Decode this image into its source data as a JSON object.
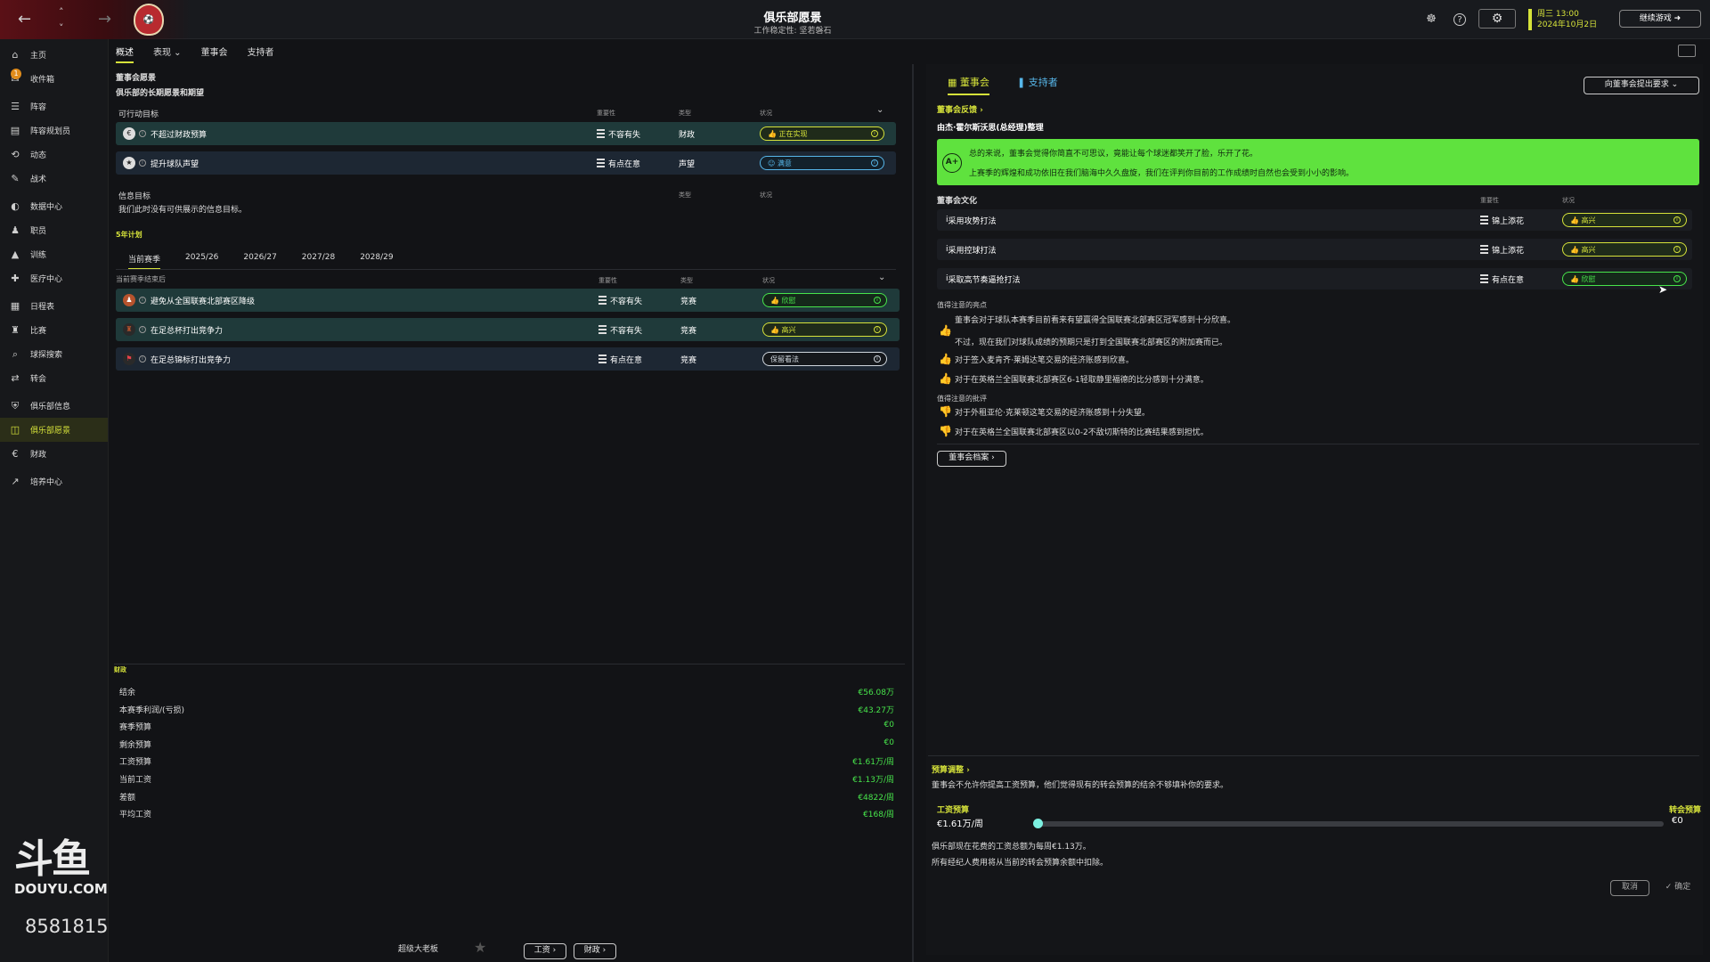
{
  "topbar": {
    "title": "俱乐部愿景",
    "subtitle": "工作稳定性: 坚若磐石",
    "time": "周三 13:00",
    "date": "2024年10月2日",
    "continue": "继续游戏"
  },
  "sidebar": {
    "items": [
      {
        "label": "主页",
        "icon": "home-icon"
      },
      {
        "label": "收件箱",
        "icon": "inbox-icon",
        "badge": "1"
      },
      {
        "label": "阵容",
        "icon": "squad-icon"
      },
      {
        "label": "阵容规划员",
        "icon": "planner-icon"
      },
      {
        "label": "动态",
        "icon": "dynamics-icon"
      },
      {
        "label": "战术",
        "icon": "tactics-icon"
      },
      {
        "label": "数据中心",
        "icon": "data-icon"
      },
      {
        "label": "职员",
        "icon": "staff-icon"
      },
      {
        "label": "训练",
        "icon": "training-icon"
      },
      {
        "label": "医疗中心",
        "icon": "medical-icon"
      },
      {
        "label": "日程表",
        "icon": "calendar-icon"
      },
      {
        "label": "比赛",
        "icon": "trophy-icon"
      },
      {
        "label": "球探搜索",
        "icon": "scouting-icon"
      },
      {
        "label": "转会",
        "icon": "transfer-icon"
      },
      {
        "label": "俱乐部信息",
        "icon": "club-info-icon"
      },
      {
        "label": "俱乐部愿景",
        "icon": "club-vision-icon"
      },
      {
        "label": "财政",
        "icon": "finance-icon"
      },
      {
        "label": "培养中心",
        "icon": "development-icon"
      }
    ]
  },
  "watermark": {
    "logo": "斗鱼",
    "text": "DOUYU.COM",
    "room": "8581815"
  },
  "subnav": {
    "tabs": [
      "概述",
      "表现 ⌄",
      "董事会",
      "支持者"
    ]
  },
  "left": {
    "section_title": "董事会愿景",
    "section_sub": "俱乐部的长期愿景和期望",
    "goals_header": "可行动目标",
    "col_importance": "重要性",
    "col_type": "类型",
    "col_status": "状况",
    "goals": [
      {
        "text": "不超过财政预算",
        "importance": "不容有失",
        "type": "财政",
        "status": "正在实现"
      },
      {
        "text": "提升球队声望",
        "importance": "有点在意",
        "type": "声望",
        "status": "满意"
      }
    ],
    "info_header": "信息目标",
    "info_text": "我们此时没有可供展示的信息目标。",
    "plan_label": "5年计划",
    "years": [
      "当前赛季",
      "2025/26",
      "2026/27",
      "2027/28",
      "2028/29"
    ],
    "season_header": "当前赛季结束后",
    "season_goals": [
      {
        "text": "避免从全国联赛北部赛区降级",
        "importance": "不容有失",
        "type": "竞赛",
        "status": "欣慰"
      },
      {
        "text": "在足总杯打出竞争力",
        "importance": "不容有失",
        "type": "竞赛",
        "status": "高兴"
      },
      {
        "text": "在足总锦标打出竞争力",
        "importance": "有点在意",
        "type": "竞赛",
        "status": "保留看法"
      }
    ],
    "finance_label": "财政",
    "finance": [
      {
        "label": "结余",
        "value": "€56.08万"
      },
      {
        "label": "本赛季利润/(亏损)",
        "value": "€43.27万"
      },
      {
        "label": "赛季预算",
        "value": "€0"
      },
      {
        "label": "剩余预算",
        "value": "€0"
      },
      {
        "label": "工资预算",
        "value": "€1.61万/周"
      },
      {
        "label": "当前工资",
        "value": "€1.13万/周"
      },
      {
        "label": "差额",
        "value": "€4822/周"
      },
      {
        "label": "平均工资",
        "value": "€168/周"
      }
    ],
    "bottom_label": "超级大老板",
    "btn_wage": "工资 ›",
    "btn_finance": "财政 ›"
  },
  "right": {
    "tab_board": "董事会",
    "tab_supporters": "支持者",
    "send_request": "向董事会提出要求 ⌄",
    "feedback_label": "董事会反馈 ›",
    "feedback_by": "由杰·霍尔斯沃思(总经理)整理",
    "grade": "A+",
    "feedback_line1": "总的来说，董事会觉得你简直不可思议，竟能让每个球迷都笑开了脸，乐开了花。",
    "feedback_line2": "上赛季的辉煌和成功依旧在我们脑海中久久盘旋，我们在评判你目前的工作成绩时自然也会受到小小的影响。",
    "culture_header": "董事会文化",
    "col_importance": "重要性",
    "col_status": "状况",
    "culture": [
      {
        "text": "采用攻势打法",
        "importance": "锦上添花",
        "status": "高兴"
      },
      {
        "text": "采用控球打法",
        "importance": "锦上添花",
        "status": "高兴"
      },
      {
        "text": "采取高节奏逼抢打法",
        "importance": "有点在意",
        "status": "欣慰"
      }
    ],
    "highlights_label": "值得注意的亮点",
    "highlight_intro": "董事会对于球队本赛季目前看来有望赢得全国联赛北部赛区冠军感到十分欣喜。",
    "highlight_intro2": "不过，现在我们对球队成绩的预期只是打到全国联赛北部赛区的附加赛而已。",
    "highlights": [
      "对于签入麦肯齐·莱姆达笔交易的经济账感到欣喜。",
      "对于在英格兰全国联赛北部赛区6-1轻取静里福德的比分感到十分满意。"
    ],
    "critique_label": "值得注意的批评",
    "critiques": [
      "对于外租亚伦·克莱顿这笔交易的经济账感到十分失望。",
      "对于在英格兰全国联赛北部赛区以0-2不敌切斯特的比赛结果感到担忧。"
    ],
    "dossier_btn": "董事会档案 ›",
    "budget_label": "预算调整 ›",
    "budget_text": "董事会不允许你提高工资预算，他们觉得现有的转会预算的结余不够填补你的要求。",
    "wage_budget_label": "工资预算",
    "wage_budget_value": "€1.61万/周",
    "transfer_budget_label": "转会预算",
    "transfer_budget_value": "€0",
    "slider_fraction": 0,
    "note1": "俱乐部现在花费的工资总额为每周€1.13万。",
    "note2": "所有经纪人费用将从当前的转会预算余额中扣除。",
    "cancel": "取消",
    "confirm": "✓ 确定"
  },
  "colors": {
    "accent": "#d6e23a",
    "green": "#47e44b",
    "blue": "#57b7ea",
    "red": "#e8414b",
    "feedback": "#5fe23e"
  }
}
